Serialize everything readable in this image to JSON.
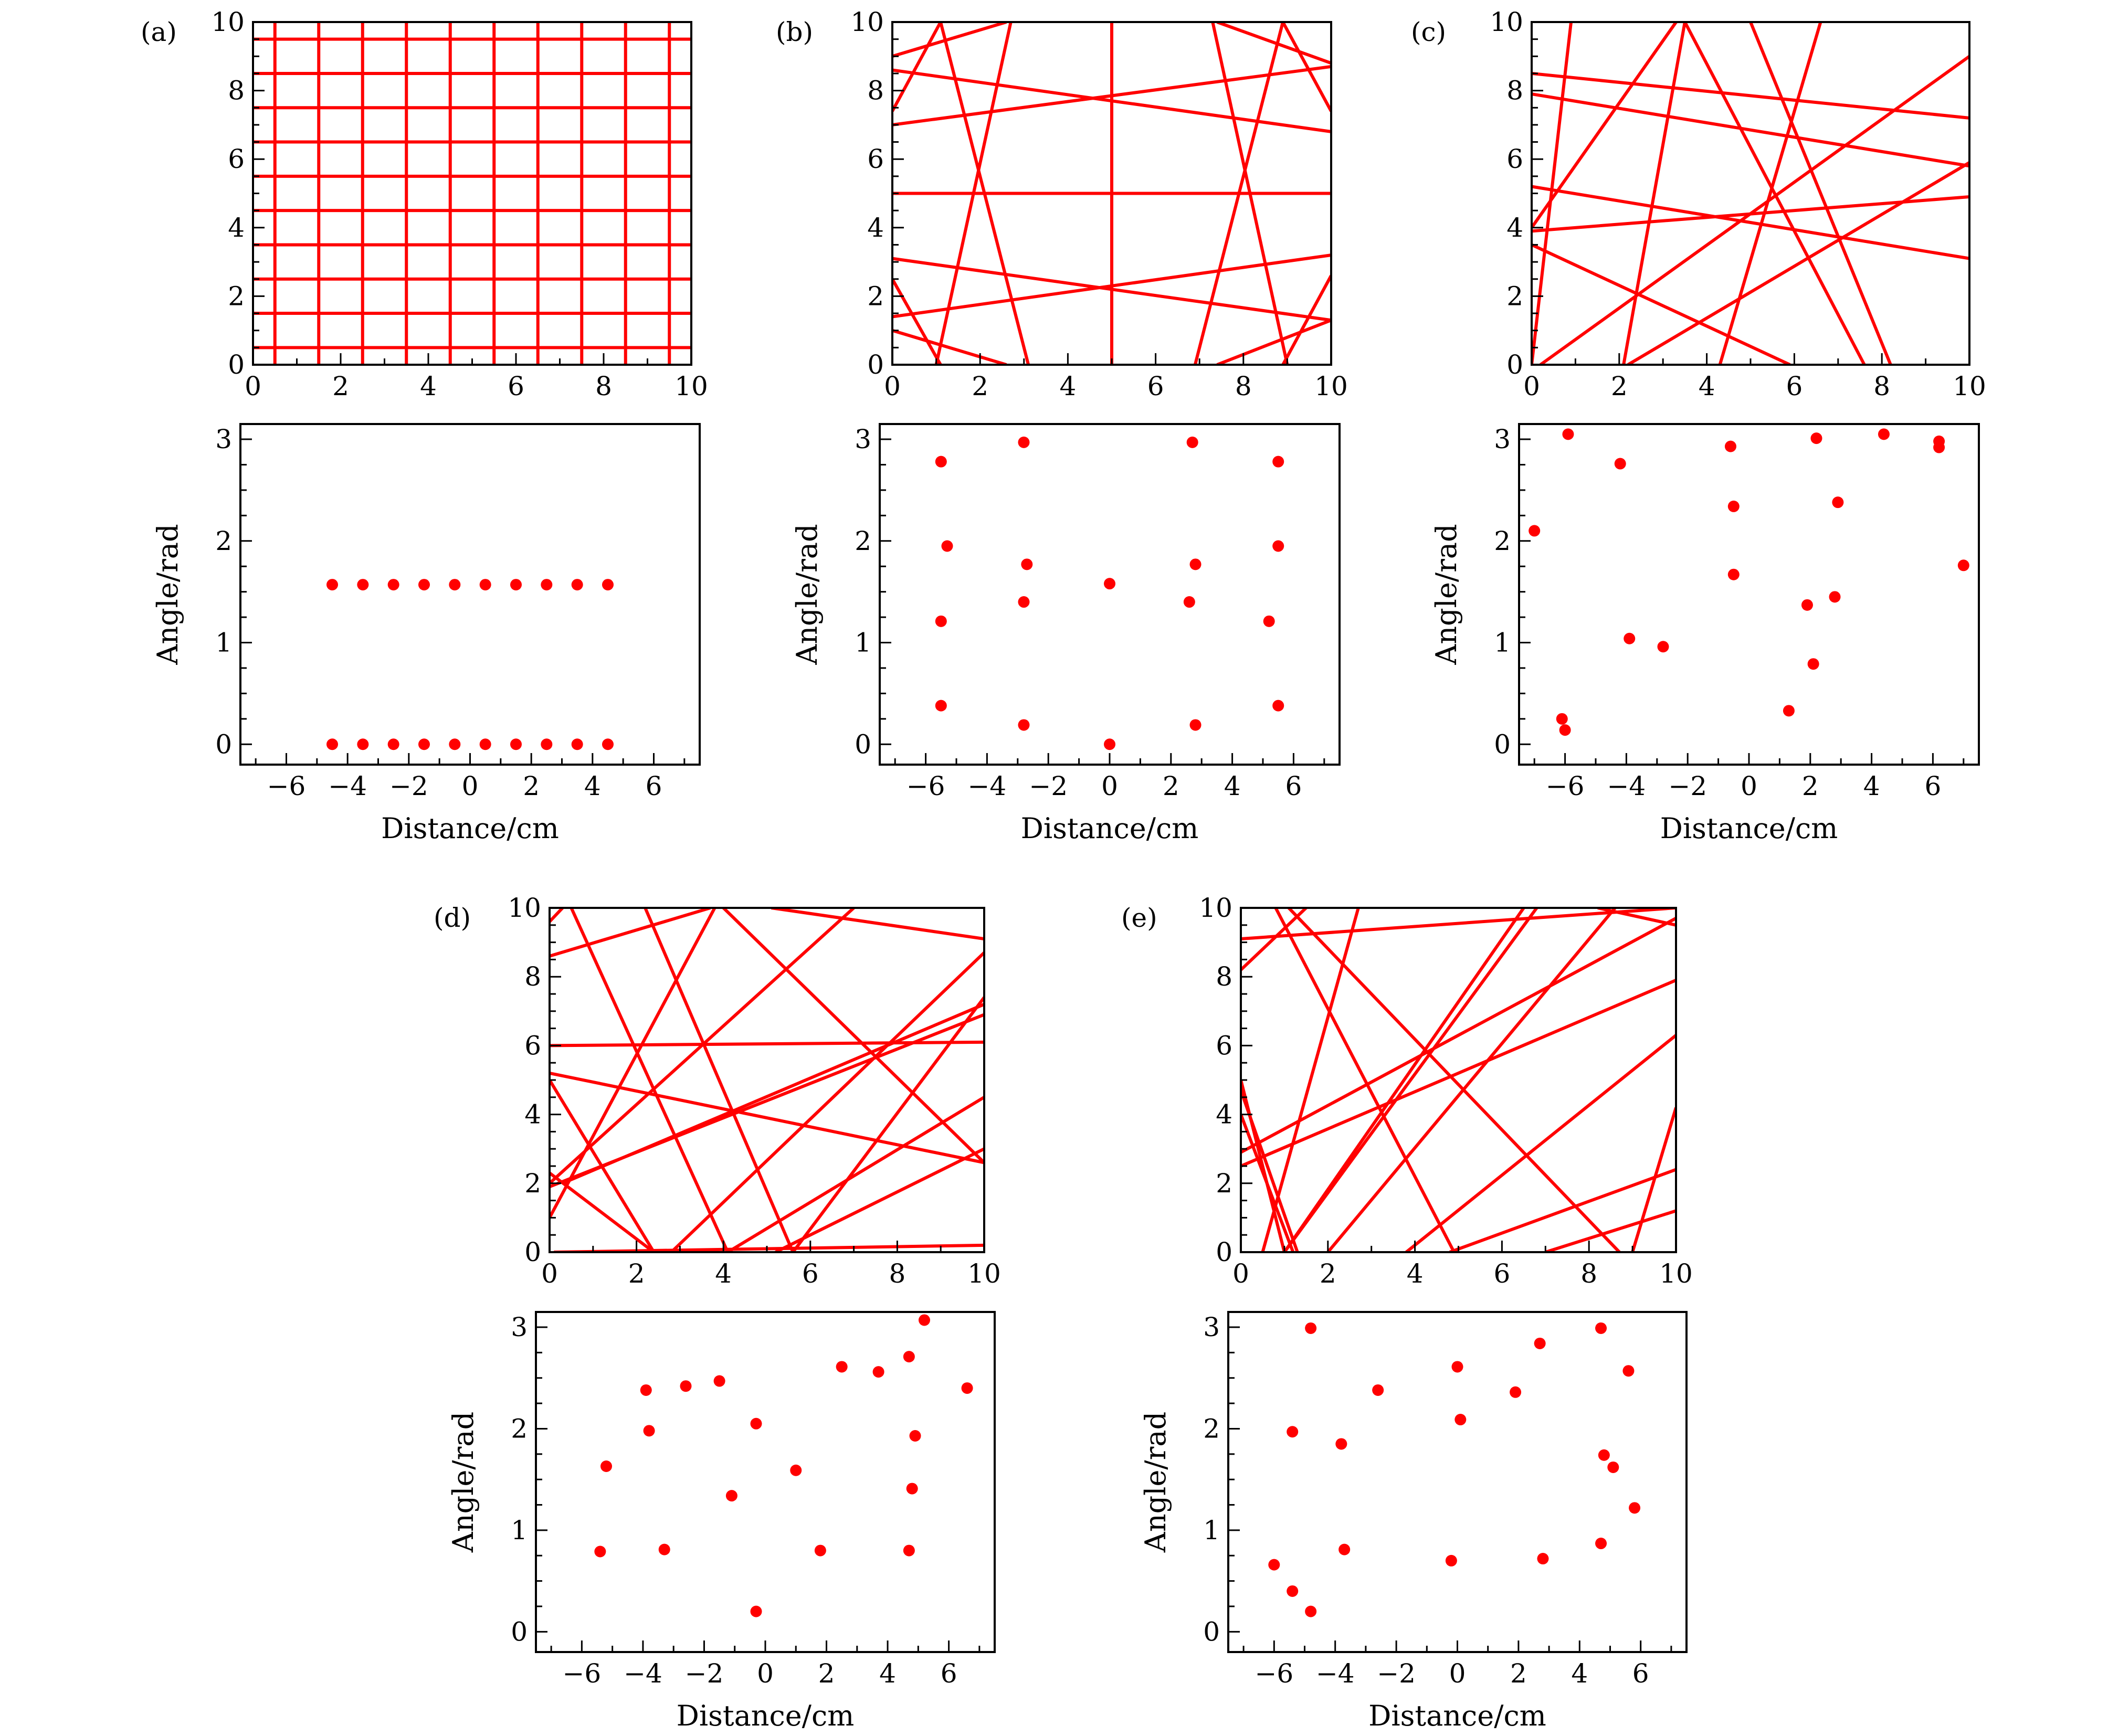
{
  "figure": {
    "line_color": "#ff0000",
    "point_color": "#ff0000",
    "axis_color": "#000000"
  },
  "chart_data": [
    {
      "panel": "(a)",
      "type": "line",
      "title": "",
      "xlim": [
        0,
        10
      ],
      "ylim": [
        0,
        10
      ],
      "xticks": [
        "0",
        "2",
        "4",
        "6",
        "8",
        "10"
      ],
      "yticks": [
        "0",
        "2",
        "4",
        "6",
        "8",
        "10"
      ],
      "segments": [
        [
          [
            0.5,
            0
          ],
          [
            0.5,
            10
          ]
        ],
        [
          [
            1.5,
            0
          ],
          [
            1.5,
            10
          ]
        ],
        [
          [
            2.5,
            0
          ],
          [
            2.5,
            10
          ]
        ],
        [
          [
            3.5,
            0
          ],
          [
            3.5,
            10
          ]
        ],
        [
          [
            4.5,
            0
          ],
          [
            4.5,
            10
          ]
        ],
        [
          [
            5.5,
            0
          ],
          [
            5.5,
            10
          ]
        ],
        [
          [
            6.5,
            0
          ],
          [
            6.5,
            10
          ]
        ],
        [
          [
            7.5,
            0
          ],
          [
            7.5,
            10
          ]
        ],
        [
          [
            8.5,
            0
          ],
          [
            8.5,
            10
          ]
        ],
        [
          [
            9.5,
            0
          ],
          [
            9.5,
            10
          ]
        ],
        [
          [
            0,
            0.5
          ],
          [
            10,
            0.5
          ]
        ],
        [
          [
            0,
            1.5
          ],
          [
            10,
            1.5
          ]
        ],
        [
          [
            0,
            2.5
          ],
          [
            10,
            2.5
          ]
        ],
        [
          [
            0,
            3.5
          ],
          [
            10,
            3.5
          ]
        ],
        [
          [
            0,
            4.5
          ],
          [
            10,
            4.5
          ]
        ],
        [
          [
            0,
            5.5
          ],
          [
            10,
            5.5
          ]
        ],
        [
          [
            0,
            6.5
          ],
          [
            10,
            6.5
          ]
        ],
        [
          [
            0,
            7.5
          ],
          [
            10,
            7.5
          ]
        ],
        [
          [
            0,
            8.5
          ],
          [
            10,
            8.5
          ]
        ],
        [
          [
            0,
            9.5
          ],
          [
            10,
            9.5
          ]
        ]
      ]
    },
    {
      "panel": "(a)",
      "type": "scatter",
      "title": "",
      "xlabel": "Distance/cm",
      "ylabel": "Angle/rad",
      "xlim": [
        -7.5,
        7.5
      ],
      "ylim": [
        -0.2,
        3.15
      ],
      "xticks": [
        "−6",
        "−4",
        "−2",
        "0",
        "2",
        "4",
        "6"
      ],
      "yticks": [
        "0",
        "1",
        "2",
        "3"
      ],
      "x": [
        -4.5,
        -3.5,
        -2.5,
        -1.5,
        -0.5,
        0.5,
        1.5,
        2.5,
        3.5,
        4.5,
        -4.5,
        -3.5,
        -2.5,
        -1.5,
        -0.5,
        0.5,
        1.5,
        2.5,
        3.5,
        4.5
      ],
      "y": [
        1.57,
        1.57,
        1.57,
        1.57,
        1.57,
        1.57,
        1.57,
        1.57,
        1.57,
        1.57,
        0,
        0,
        0,
        0,
        0,
        0,
        0,
        0,
        0,
        0
      ]
    },
    {
      "panel": "(b)",
      "type": "line",
      "title": "",
      "xlim": [
        0,
        10
      ],
      "ylim": [
        0,
        10
      ],
      "xticks": [
        "0",
        "2",
        "4",
        "6",
        "8",
        "10"
      ],
      "yticks": [
        "0",
        "2",
        "4",
        "6",
        "8",
        "10"
      ],
      "segments": [
        [
          [
            5,
            0
          ],
          [
            5,
            10
          ]
        ],
        [
          [
            0,
            5
          ],
          [
            10,
            5
          ]
        ],
        [
          [
            1.0,
            0
          ],
          [
            2.7,
            10
          ]
        ],
        [
          [
            3.1,
            0
          ],
          [
            1.1,
            10
          ]
        ],
        [
          [
            6.9,
            0
          ],
          [
            8.9,
            10
          ]
        ],
        [
          [
            9.0,
            0
          ],
          [
            7.3,
            10
          ]
        ],
        [
          [
            0,
            7.0
          ],
          [
            10,
            8.7
          ]
        ],
        [
          [
            0,
            8.6
          ],
          [
            10,
            6.8
          ]
        ],
        [
          [
            0,
            3.1
          ],
          [
            10,
            1.3
          ]
        ],
        [
          [
            0,
            1.4
          ],
          [
            10,
            3.2
          ]
        ],
        [
          [
            0,
            9.0
          ],
          [
            2.6,
            10
          ]
        ],
        [
          [
            0,
            7.4
          ],
          [
            1.1,
            10
          ]
        ],
        [
          [
            8.9,
            10
          ],
          [
            10,
            7.4
          ]
        ],
        [
          [
            7.4,
            10
          ],
          [
            10,
            8.8
          ]
        ],
        [
          [
            0,
            2.5
          ],
          [
            1.1,
            0
          ]
        ],
        [
          [
            0,
            1.0
          ],
          [
            2.6,
            0
          ]
        ],
        [
          [
            8.9,
            0
          ],
          [
            10,
            2.6
          ]
        ],
        [
          [
            7.4,
            0
          ],
          [
            10,
            1.3
          ]
        ]
      ]
    },
    {
      "panel": "(b)",
      "type": "scatter",
      "title": "",
      "xlabel": "Distance/cm",
      "ylabel": "Angle/rad",
      "xlim": [
        -7.5,
        7.5
      ],
      "ylim": [
        -0.2,
        3.15
      ],
      "xticks": [
        "−6",
        "−4",
        "−2",
        "0",
        "2",
        "4",
        "6"
      ],
      "yticks": [
        "0",
        "1",
        "2",
        "3"
      ],
      "x": [
        -5.5,
        -5.3,
        -5.5,
        -5.5,
        -2.8,
        -2.7,
        -2.8,
        -2.8,
        0,
        0,
        2.7,
        2.8,
        2.6,
        2.8,
        5.5,
        5.5,
        5.2,
        5.5
      ],
      "y": [
        2.78,
        1.95,
        1.21,
        0.38,
        2.97,
        1.77,
        1.4,
        0.19,
        1.58,
        0,
        2.97,
        1.77,
        1.4,
        0.19,
        2.78,
        1.95,
        1.21,
        0.38
      ]
    },
    {
      "panel": "(c)",
      "type": "line",
      "title": "",
      "xlim": [
        0,
        10
      ],
      "ylim": [
        0,
        10
      ],
      "xticks": [
        "0",
        "2",
        "4",
        "6",
        "8",
        "10"
      ],
      "yticks": [
        "0",
        "2",
        "4",
        "6",
        "8",
        "10"
      ],
      "segments": [
        [
          [
            0,
            0
          ],
          [
            0.9,
            10
          ]
        ],
        [
          [
            0.2,
            0
          ],
          [
            10,
            9.0
          ]
        ],
        [
          [
            0,
            4.0
          ],
          [
            3.3,
            10
          ]
        ],
        [
          [
            0,
            7.9
          ],
          [
            10,
            5.8
          ]
        ],
        [
          [
            0,
            8.5
          ],
          [
            10,
            7.2
          ]
        ],
        [
          [
            0,
            3.9
          ],
          [
            10,
            4.9
          ]
        ],
        [
          [
            2.1,
            0
          ],
          [
            3.5,
            10
          ]
        ],
        [
          [
            4.3,
            0
          ],
          [
            6.6,
            10
          ]
        ],
        [
          [
            5.0,
            10
          ],
          [
            8.2,
            0
          ]
        ],
        [
          [
            3.5,
            10
          ],
          [
            7.6,
            0
          ]
        ],
        [
          [
            0,
            5.2
          ],
          [
            10,
            3.1
          ]
        ],
        [
          [
            0,
            3.5
          ],
          [
            5.9,
            0
          ]
        ],
        [
          [
            2.2,
            0
          ],
          [
            10,
            5.9
          ]
        ]
      ]
    },
    {
      "panel": "(c)",
      "type": "scatter",
      "title": "",
      "xlabel": "Distance/cm",
      "ylabel": "Angle/rad",
      "xlim": [
        -7.5,
        7.5
      ],
      "ylim": [
        -0.2,
        3.15
      ],
      "xticks": [
        "−6",
        "−4",
        "−2",
        "0",
        "2",
        "4",
        "6"
      ],
      "yticks": [
        "0",
        "1",
        "2",
        "3"
      ],
      "x": [
        -7.0,
        -5.9,
        -4.2,
        -6.1,
        -6.0,
        -3.9,
        -2.8,
        -0.6,
        -0.5,
        -0.5,
        1.3,
        1.9,
        2.1,
        2.2,
        2.8,
        2.9,
        4.4,
        6.2,
        6.2,
        7.0
      ],
      "y": [
        2.1,
        3.05,
        2.76,
        0.25,
        0.14,
        1.04,
        0.96,
        2.93,
        2.34,
        1.67,
        0.33,
        1.37,
        0.79,
        3.01,
        1.45,
        2.38,
        3.05,
        2.98,
        2.92,
        1.76
      ]
    },
    {
      "panel": "(d)",
      "type": "line",
      "title": "",
      "xlim": [
        0,
        10
      ],
      "ylim": [
        0,
        10
      ],
      "xticks": [
        "0",
        "2",
        "4",
        "6",
        "8",
        "10"
      ],
      "yticks": [
        "0",
        "2",
        "4",
        "6",
        "8",
        "10"
      ],
      "segments": [
        [
          [
            0,
            6.0
          ],
          [
            10,
            6.1
          ]
        ],
        [
          [
            0,
            8.6
          ],
          [
            3.7,
            10
          ]
        ],
        [
          [
            0,
            9.6
          ],
          [
            0.3,
            10
          ]
        ],
        [
          [
            5.1,
            10
          ],
          [
            10,
            9.1
          ]
        ],
        [
          [
            0.1,
            0
          ],
          [
            10,
            0.2
          ]
        ],
        [
          [
            0,
            5.2
          ],
          [
            10,
            2.6
          ]
        ],
        [
          [
            0,
            5.0
          ],
          [
            2.4,
            0
          ]
        ],
        [
          [
            0,
            2.3
          ],
          [
            2.4,
            0
          ]
        ],
        [
          [
            0,
            2.0
          ],
          [
            7.0,
            10
          ]
        ],
        [
          [
            0.3,
            2.0
          ],
          [
            10,
            7.2
          ]
        ],
        [
          [
            0,
            1.9
          ],
          [
            10,
            6.9
          ]
        ],
        [
          [
            2.8,
            0
          ],
          [
            10,
            8.7
          ]
        ],
        [
          [
            4.1,
            0
          ],
          [
            10,
            4.5
          ]
        ],
        [
          [
            5.2,
            0
          ],
          [
            10,
            3.0
          ]
        ],
        [
          [
            5.6,
            0
          ],
          [
            10,
            7.4
          ]
        ],
        [
          [
            2.2,
            10
          ],
          [
            5.6,
            0
          ]
        ],
        [
          [
            4.0,
            10
          ],
          [
            10,
            2.6
          ]
        ],
        [
          [
            0.5,
            10
          ],
          [
            4.1,
            0
          ]
        ],
        [
          [
            0,
            1.0
          ],
          [
            3.8,
            10
          ]
        ]
      ]
    },
    {
      "panel": "(d)",
      "type": "scatter",
      "title": "",
      "xlabel": "Distance/cm",
      "ylabel": "Angle/rad",
      "xlim": [
        -7.5,
        7.5
      ],
      "ylim": [
        -0.2,
        3.15
      ],
      "xticks": [
        "−6",
        "−4",
        "−2",
        "0",
        "2",
        "4",
        "6"
      ],
      "yticks": [
        "0",
        "1",
        "2",
        "3"
      ],
      "x": [
        -5.4,
        -5.2,
        -3.9,
        -3.8,
        -3.3,
        -2.6,
        -1.5,
        -1.1,
        -0.3,
        -0.3,
        1.0,
        1.8,
        2.5,
        3.7,
        4.7,
        4.7,
        4.8,
        4.9,
        5.2,
        6.6
      ],
      "y": [
        0.79,
        1.63,
        2.38,
        1.98,
        0.81,
        2.42,
        2.47,
        1.34,
        2.05,
        0.2,
        1.59,
        0.8,
        2.61,
        2.56,
        2.71,
        0.8,
        1.41,
        1.93,
        3.07,
        2.4
      ]
    },
    {
      "panel": "(e)",
      "type": "line",
      "title": "",
      "xlim": [
        0,
        10
      ],
      "ylim": [
        0,
        10
      ],
      "xticks": [
        "0",
        "2",
        "4",
        "6",
        "8",
        "10"
      ],
      "yticks": [
        "0",
        "2",
        "4",
        "6",
        "8",
        "10"
      ],
      "segments": [
        [
          [
            0,
            8.2
          ],
          [
            1.5,
            10
          ]
        ],
        [
          [
            0,
            9.1
          ],
          [
            10,
            10
          ]
        ],
        [
          [
            0,
            4.7
          ],
          [
            1.3,
            0
          ]
        ],
        [
          [
            0,
            4.0
          ],
          [
            1.2,
            0
          ]
        ],
        [
          [
            0,
            2.5
          ],
          [
            10,
            7.9
          ]
        ],
        [
          [
            0,
            2.9
          ],
          [
            10,
            9.7
          ]
        ],
        [
          [
            0.5,
            0
          ],
          [
            2.7,
            10
          ]
        ],
        [
          [
            1.0,
            0
          ],
          [
            6.8,
            10
          ]
        ],
        [
          [
            2.0,
            0
          ],
          [
            8.6,
            10
          ]
        ],
        [
          [
            3.8,
            0
          ],
          [
            10,
            6.3
          ]
        ],
        [
          [
            4.8,
            0
          ],
          [
            10,
            2.4
          ]
        ],
        [
          [
            7.0,
            0
          ],
          [
            10,
            1.2
          ]
        ],
        [
          [
            0.8,
            10
          ],
          [
            4.9,
            0
          ]
        ],
        [
          [
            1.1,
            10
          ],
          [
            8.7,
            0
          ]
        ],
        [
          [
            9.0,
            0
          ],
          [
            10,
            4.2
          ]
        ],
        [
          [
            8.2,
            10
          ],
          [
            10,
            9.5
          ]
        ],
        [
          [
            6.5,
            10
          ],
          [
            1.0,
            0
          ]
        ],
        [
          [
            0,
            5.0
          ],
          [
            1.0,
            0
          ]
        ]
      ]
    },
    {
      "panel": "(e)",
      "type": "scatter",
      "title": "",
      "xlabel": "Distance/cm",
      "ylabel": "Angle/rad",
      "xlim": [
        -7.5,
        7.5
      ],
      "ylim": [
        -0.2,
        3.15
      ],
      "xticks": [
        "−6",
        "−4",
        "−2",
        "0",
        "2",
        "4",
        "6"
      ],
      "yticks": [
        "0",
        "1",
        "2",
        "3"
      ],
      "x": [
        -6.0,
        -5.4,
        -5.4,
        -4.8,
        -4.8,
        -3.8,
        -3.7,
        -2.6,
        -0.2,
        0,
        0.1,
        1.9,
        2.7,
        2.8,
        4.7,
        4.8,
        4.7,
        5.1,
        5.6,
        5.8
      ],
      "y": [
        0.66,
        0.4,
        1.97,
        2.99,
        0.2,
        1.85,
        0.81,
        2.38,
        0.7,
        2.61,
        2.09,
        2.36,
        2.84,
        0.72,
        0.87,
        1.74,
        2.99,
        1.62,
        2.57,
        1.22
      ]
    }
  ]
}
